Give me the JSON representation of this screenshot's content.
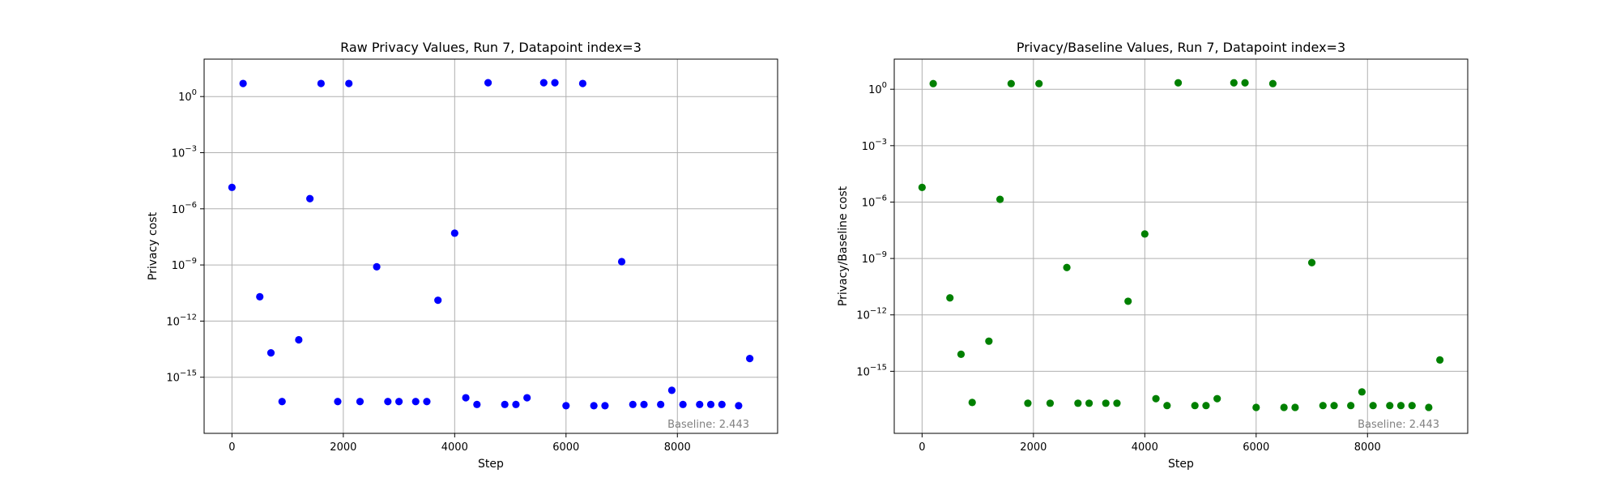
{
  "chart_data": [
    {
      "type": "scatter",
      "title": "Raw Privacy Values, Run 7, Datapoint index=3",
      "xlabel": "Step",
      "ylabel": "Privacy cost",
      "yscale": "log",
      "xlim": [
        -500,
        9800
      ],
      "ylim": [
        1e-18,
        100.0
      ],
      "xticks": [
        "0",
        "2000",
        "4000",
        "6000",
        "8000"
      ],
      "yticks": [
        "10^0",
        "10^-3",
        "10^-6",
        "10^-9",
        "10^-12",
        "10^-15"
      ],
      "grid": true,
      "color": "#0000ff",
      "annotation": "Baseline: 2.443",
      "series": [
        {
          "x": [
            0,
            200,
            500,
            700,
            900,
            1200,
            1400,
            1600,
            1900,
            2100,
            2300,
            2600,
            2800,
            3000,
            3300,
            3500,
            3700,
            4000,
            4200,
            4400,
            4600,
            4900,
            5100,
            5300,
            5600,
            5800,
            6000,
            6300,
            6500,
            6700,
            7000,
            7200,
            7400,
            7700,
            7900,
            8100,
            8400,
            8600,
            8800,
            9100,
            9300
          ],
          "y": [
            1.4e-05,
            5,
            2e-11,
            2e-14,
            5e-17,
            1e-13,
            3.5e-06,
            5,
            5e-17,
            5,
            5e-17,
            8e-10,
            5e-17,
            5e-17,
            5e-17,
            5e-17,
            1.3e-11,
            5e-08,
            8e-17,
            3.5e-17,
            5.5,
            3.5e-17,
            3.5e-17,
            8e-17,
            5.5,
            5.5,
            3e-17,
            5,
            3e-17,
            3e-17,
            1.5e-09,
            3.5e-17,
            3.5e-17,
            3.5e-17,
            2e-16,
            3.5e-17,
            3.5e-17,
            3.5e-17,
            3.5e-17,
            3e-17,
            1e-14
          ]
        }
      ]
    },
    {
      "type": "scatter",
      "title": "Privacy/Baseline Values, Run 7, Datapoint index=3",
      "xlabel": "Step",
      "ylabel": "Privacy/Baseline cost",
      "yscale": "log",
      "xlim": [
        -500,
        9800
      ],
      "ylim": [
        5e-19,
        40
      ],
      "xticks": [
        "0",
        "2000",
        "4000",
        "6000",
        "8000"
      ],
      "yticks": [
        "10^0",
        "10^-3",
        "10^-6",
        "10^-9",
        "10^-12",
        "10^-15"
      ],
      "grid": true,
      "color": "#008000",
      "annotation": "Baseline: 2.443",
      "series": [
        {
          "x": [
            0,
            200,
            500,
            700,
            900,
            1200,
            1400,
            1600,
            1900,
            2100,
            2300,
            2600,
            2800,
            3000,
            3300,
            3500,
            3700,
            4000,
            4200,
            4400,
            4600,
            4900,
            5100,
            5300,
            5600,
            5800,
            6000,
            6300,
            6500,
            6700,
            7000,
            7200,
            7400,
            7700,
            7900,
            8100,
            8400,
            8600,
            8800,
            9100,
            9300
          ],
          "y": [
            6e-06,
            2,
            8e-12,
            8e-15,
            2.2e-17,
            4e-14,
            1.4e-06,
            2,
            2e-17,
            2,
            2e-17,
            3.3e-10,
            2e-17,
            2e-17,
            2e-17,
            2e-17,
            5.3e-12,
            2e-08,
            3.5e-17,
            1.5e-17,
            2.2,
            1.5e-17,
            1.5e-17,
            3.5e-17,
            2.2,
            2.2,
            1.2e-17,
            2,
            1.2e-17,
            1.2e-17,
            6e-10,
            1.5e-17,
            1.5e-17,
            1.5e-17,
            8e-17,
            1.5e-17,
            1.5e-17,
            1.5e-17,
            1.5e-17,
            1.2e-17,
            4e-15
          ]
        }
      ]
    }
  ]
}
